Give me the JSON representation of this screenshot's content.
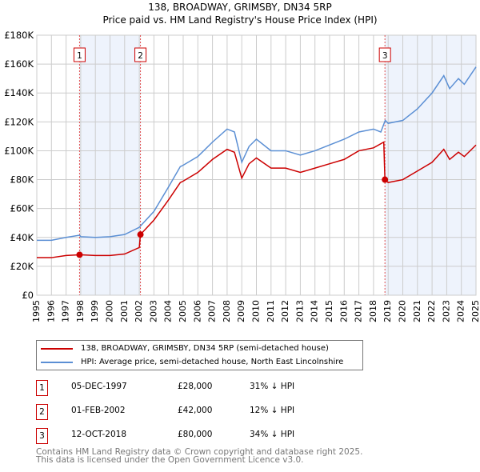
{
  "chart_data": {
    "type": "line",
    "title": "138, BROADWAY, GRIMSBY, DN34 5RP",
    "subtitle": "Price paid vs. HM Land Registry's House Price Index (HPI)",
    "xlim": [
      1995,
      2025
    ],
    "ylim": [
      0,
      180000
    ],
    "x_ticks": [
      "1995",
      "1996",
      "1997",
      "1998",
      "1999",
      "2000",
      "2001",
      "2002",
      "2003",
      "2004",
      "2005",
      "2006",
      "2007",
      "2008",
      "2009",
      "2010",
      "2011",
      "2012",
      "2013",
      "2014",
      "2015",
      "2016",
      "2017",
      "2018",
      "2019",
      "2020",
      "2021",
      "2022",
      "2023",
      "2024",
      "2025"
    ],
    "y_ticks": [
      {
        "v": 0,
        "label": "£0"
      },
      {
        "v": 20000,
        "label": "£20K"
      },
      {
        "v": 40000,
        "label": "£40K"
      },
      {
        "v": 60000,
        "label": "£60K"
      },
      {
        "v": 80000,
        "label": "£80K"
      },
      {
        "v": 100000,
        "label": "£100K"
      },
      {
        "v": 120000,
        "label": "£120K"
      },
      {
        "v": 140000,
        "label": "£140K"
      },
      {
        "v": 160000,
        "label": "£160K"
      },
      {
        "v": 180000,
        "label": "£180K"
      }
    ],
    "grid": true,
    "series": [
      {
        "name": "138, BROADWAY, GRIMSBY, DN34 5RP (semi-detached house)",
        "color": "#cc0000",
        "x": [
          1995,
          1996,
          1997,
          1997.92,
          1998,
          1999,
          2000,
          2001,
          2002.0,
          2002.08,
          2003,
          2004,
          2004.8,
          2005,
          2006,
          2007,
          2008,
          2008.5,
          2009,
          2009.5,
          2010,
          2011,
          2012,
          2013,
          2014,
          2015,
          2016,
          2017,
          2018,
          2018.7,
          2018.78,
          2019,
          2020,
          2021,
          2022,
          2022.8,
          2023.2,
          2023.8,
          2024.2,
          2025
        ],
        "y": [
          26000,
          26000,
          27500,
          28000,
          28000,
          27500,
          27500,
          28500,
          33000,
          42000,
          52000,
          66000,
          78000,
          79000,
          85000,
          94000,
          101000,
          99000,
          81000,
          91000,
          95000,
          88000,
          88000,
          85000,
          88000,
          91000,
          94000,
          100000,
          102000,
          106000,
          80000,
          78000,
          80000,
          86000,
          92000,
          101000,
          94000,
          99000,
          96000,
          104000
        ]
      },
      {
        "name": "HPI: Average price, semi-detached house, North East Lincolnshire",
        "color": "#5b8fd4",
        "x": [
          1995,
          1996,
          1997,
          1997.92,
          1998,
          1999,
          2000,
          2001,
          2002,
          2003,
          2004,
          2004.8,
          2005,
          2006,
          2007,
          2008,
          2008.5,
          2009,
          2009.5,
          2010,
          2011,
          2012,
          2013,
          2014,
          2015,
          2016,
          2017,
          2018,
          2018.5,
          2018.8,
          2019,
          2020,
          2021,
          2022,
          2022.8,
          2023.2,
          2023.8,
          2024.2,
          2025
        ],
        "y": [
          38000,
          38000,
          40000,
          41500,
          40500,
          40000,
          40500,
          42000,
          47000,
          58000,
          75000,
          89000,
          90000,
          96000,
          106000,
          115000,
          113000,
          92000,
          103000,
          108000,
          100000,
          100000,
          97000,
          100000,
          104000,
          108000,
          113000,
          115000,
          113000,
          121000,
          119000,
          121000,
          129000,
          140000,
          152000,
          143000,
          150000,
          146000,
          158000
        ]
      }
    ],
    "sales": [
      {
        "n": "1",
        "x": 1997.92,
        "y": 28000,
        "date": "05-DEC-1997",
        "price": "£28,000",
        "hpi": "31% ↓ HPI"
      },
      {
        "n": "2",
        "x": 2002.08,
        "y": 42000,
        "date": "01-FEB-2002",
        "price": "£42,000",
        "hpi": "12% ↓ HPI"
      },
      {
        "n": "3",
        "x": 2018.78,
        "y": 80000,
        "date": "12-OCT-2018",
        "price": "£80,000",
        "hpi": "34% ↓ HPI"
      }
    ],
    "shaded": [
      [
        1997.92,
        2002.08
      ],
      [
        2018.78,
        2025
      ]
    ],
    "legend_placement": "below"
  },
  "footer": {
    "line1": "Contains HM Land Registry data © Crown copyright and database right 2025.",
    "line2": "This data is licensed under the Open Government Licence v3.0."
  }
}
